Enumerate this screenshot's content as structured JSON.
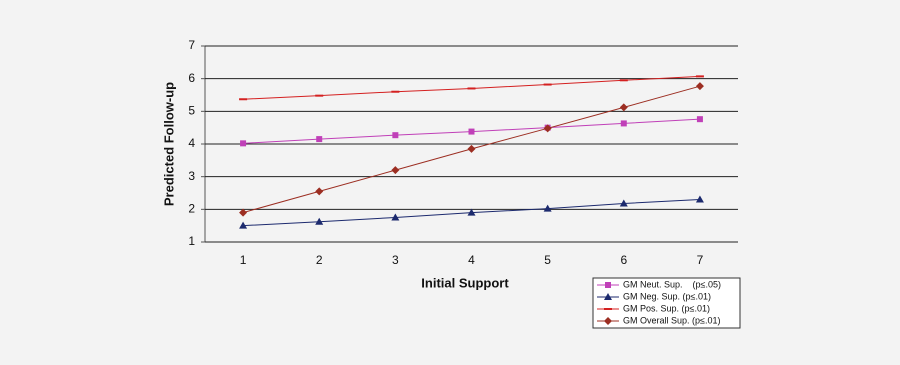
{
  "chart_data": {
    "type": "line",
    "x_label": "Initial Support",
    "y_label": "Predicted Follow-up",
    "categories": [
      1,
      2,
      3,
      4,
      5,
      6,
      7
    ],
    "ylim": [
      1,
      7
    ],
    "yticks": [
      1,
      2,
      3,
      4,
      5,
      6,
      7
    ],
    "grid": true,
    "legend": "bottom-right",
    "series": [
      {
        "name": "GM Neut. Sup.    (p≤.05)",
        "color": "#c040b8",
        "marker": "square",
        "values": [
          4.02,
          4.15,
          4.27,
          4.38,
          4.5,
          4.63,
          4.76
        ]
      },
      {
        "name": "GM Neg. Sup. (p≤.01)",
        "color": "#1c2a6e",
        "marker": "triangle",
        "values": [
          1.5,
          1.62,
          1.75,
          1.9,
          2.02,
          2.18,
          2.3
        ]
      },
      {
        "name": "GM Pos. Sup. (p≤.01)",
        "color": "#d42020",
        "marker": "dash",
        "values": [
          5.37,
          5.48,
          5.6,
          5.7,
          5.82,
          5.95,
          6.07
        ]
      },
      {
        "name": "GM Overall Sup. (p≤.01)",
        "color": "#9c2e22",
        "marker": "diamond",
        "values": [
          1.9,
          2.55,
          3.2,
          3.85,
          4.48,
          5.12,
          5.77
        ]
      }
    ]
  }
}
